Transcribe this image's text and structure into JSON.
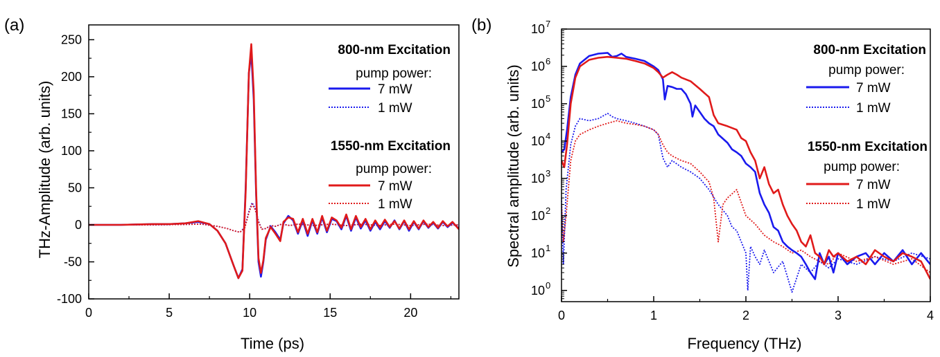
{
  "chart_data": [
    {
      "panel_label": "(a)",
      "type": "line",
      "xlabel": "Time (ps)",
      "ylabel": "THz-Amplitude (arb. units)",
      "xlim": [
        0,
        23
      ],
      "ylim": [
        -100,
        270
      ],
      "xticks": [
        "0",
        "5",
        "10",
        "15",
        "20"
      ],
      "yticks": [
        "-100",
        "-50",
        "0",
        "50",
        "100",
        "150",
        "200",
        "250"
      ],
      "legend": {
        "placement": "top-right",
        "group1_title": "800-nm Excitation",
        "group1_sub": "pump power:",
        "group2_title": "1550-nm Excitation",
        "group2_sub": "pump power:"
      },
      "series": [
        {
          "name": "7 mW",
          "group": "800-nm Excitation",
          "color": "#1a1aee",
          "dash": "solid",
          "x": [
            0,
            1,
            2,
            3,
            4,
            5,
            6,
            6.8,
            7.5,
            8,
            8.5,
            9,
            9.3,
            9.55,
            9.75,
            9.95,
            10.1,
            10.25,
            10.4,
            10.55,
            10.7,
            10.85,
            11.0,
            11.3,
            11.6,
            11.9,
            12.1,
            12.4,
            12.7,
            13.0,
            13.3,
            13.6,
            13.9,
            14.2,
            14.5,
            14.8,
            15.1,
            15.4,
            15.7,
            16.0,
            16.3,
            16.6,
            16.9,
            17.2,
            17.5,
            17.8,
            18.1,
            18.4,
            18.7,
            19.0,
            19.3,
            19.6,
            19.9,
            20.2,
            20.5,
            20.8,
            21.1,
            21.4,
            21.7,
            22.0,
            22.3,
            22.6,
            23.0
          ],
          "y": [
            0,
            0,
            0,
            0.5,
            1,
            1,
            2,
            4,
            1,
            -8,
            -25,
            -55,
            -72,
            -60,
            50,
            205,
            232,
            170,
            40,
            -50,
            -70,
            -50,
            -20,
            -2,
            -10,
            -20,
            2,
            12,
            6,
            -12,
            6,
            -15,
            6,
            -12,
            10,
            -10,
            8,
            5,
            -6,
            12,
            -8,
            10,
            -5,
            6,
            -8,
            4,
            -6,
            5,
            -4,
            6,
            -6,
            5,
            -8,
            4,
            -6,
            5,
            -4,
            3,
            -5,
            4,
            -3,
            3,
            -5
          ]
        },
        {
          "name": "1 mW",
          "group": "800-nm Excitation",
          "color": "#1a1aee",
          "dash": "dotted",
          "x": [
            0,
            2,
            4,
            6,
            7,
            8,
            8.6,
            9,
            9.4,
            9.7,
            9.95,
            10.15,
            10.35,
            10.55,
            10.75,
            11,
            11.3,
            11.6,
            12,
            12.5,
            13,
            14,
            15,
            16,
            17,
            18,
            19,
            20,
            21,
            22,
            23
          ],
          "y": [
            0,
            0,
            0,
            0.5,
            1,
            -2,
            -5,
            -8,
            -10,
            -3,
            18,
            30,
            22,
            5,
            -6,
            -5,
            -1,
            -2,
            1,
            -1,
            1,
            -1,
            1,
            -1,
            1,
            -1,
            1,
            -1,
            1,
            -1,
            0
          ]
        },
        {
          "name": "7 mW",
          "group": "1550-nm Excitation",
          "color": "#e01a1a",
          "dash": "solid",
          "x": [
            0,
            1,
            2,
            3,
            4,
            5,
            6,
            6.8,
            7.5,
            8,
            8.5,
            9,
            9.3,
            9.55,
            9.75,
            9.95,
            10.1,
            10.25,
            10.4,
            10.55,
            10.7,
            10.85,
            11.0,
            11.3,
            11.6,
            11.9,
            12.1,
            12.4,
            12.7,
            13.0,
            13.3,
            13.6,
            13.9,
            14.2,
            14.5,
            14.8,
            15.1,
            15.4,
            15.7,
            16.0,
            16.3,
            16.6,
            16.9,
            17.2,
            17.5,
            17.8,
            18.1,
            18.4,
            18.7,
            19.0,
            19.3,
            19.6,
            19.9,
            20.2,
            20.5,
            20.8,
            21.1,
            21.4,
            21.7,
            22.0,
            22.3,
            22.6,
            23.0
          ],
          "y": [
            0,
            0,
            0,
            0.5,
            1,
            1,
            2,
            5,
            1,
            -8,
            -25,
            -55,
            -72,
            -62,
            45,
            205,
            244,
            180,
            45,
            -45,
            -65,
            -48,
            -18,
            -3,
            -12,
            -22,
            4,
            10,
            8,
            -10,
            8,
            -12,
            8,
            -10,
            12,
            -8,
            10,
            6,
            -4,
            14,
            -6,
            12,
            -3,
            8,
            -6,
            6,
            -4,
            7,
            -3,
            5,
            -5,
            6,
            -6,
            5,
            -5,
            6,
            -3,
            4,
            -4,
            5,
            -2,
            4,
            -6
          ]
        },
        {
          "name": "1 mW",
          "group": "1550-nm Excitation",
          "color": "#e01a1a",
          "dash": "dotted",
          "x": [
            0,
            2,
            4,
            6,
            7,
            8,
            8.6,
            9,
            9.4,
            9.7,
            9.95,
            10.15,
            10.35,
            10.55,
            10.75,
            11,
            11.3,
            11.6,
            12,
            12.5,
            13,
            14,
            15,
            16,
            17,
            18,
            19,
            20,
            21,
            22,
            23
          ],
          "y": [
            0,
            0,
            0,
            0.5,
            1,
            -2,
            -5,
            -8,
            -10,
            -4,
            16,
            28,
            20,
            4,
            -6,
            -5,
            -1,
            -2,
            1,
            -1,
            1,
            -1,
            1,
            -1,
            1,
            -1,
            1,
            -1,
            1,
            -1,
            0
          ]
        }
      ]
    },
    {
      "panel_label": "(b)",
      "type": "line",
      "xlabel": "Frequency (THz)",
      "ylabel": "Spectral amplitude (arb. units)",
      "yscale": "log",
      "xlim": [
        0,
        4
      ],
      "ylim": [
        0.5,
        10000000
      ],
      "xticks": [
        "0",
        "1",
        "2",
        "3",
        "4"
      ],
      "yticks": [
        {
          "base": "10",
          "exp": "0",
          "value": 1
        },
        {
          "base": "10",
          "exp": "1",
          "value": 10
        },
        {
          "base": "10",
          "exp": "2",
          "value": 100
        },
        {
          "base": "10",
          "exp": "3",
          "value": 1000
        },
        {
          "base": "10",
          "exp": "4",
          "value": 10000
        },
        {
          "base": "10",
          "exp": "5",
          "value": 100000
        },
        {
          "base": "10",
          "exp": "6",
          "value": 1000000
        },
        {
          "base": "10",
          "exp": "7",
          "value": 10000000
        }
      ],
      "legend": {
        "placement": "top-right",
        "group1_title": "800-nm Excitation",
        "group1_sub": "pump power:",
        "group2_title": "1550-nm Excitation",
        "group2_sub": "pump power:"
      },
      "series": [
        {
          "name": "7 mW",
          "group": "800-nm Excitation",
          "color": "#1a1aee",
          "dash": "solid",
          "x": [
            0,
            0.03,
            0.06,
            0.1,
            0.15,
            0.2,
            0.3,
            0.4,
            0.5,
            0.55,
            0.6,
            0.65,
            0.7,
            0.8,
            0.9,
            1.0,
            1.05,
            1.1,
            1.12,
            1.15,
            1.2,
            1.25,
            1.3,
            1.35,
            1.4,
            1.42,
            1.45,
            1.5,
            1.55,
            1.6,
            1.65,
            1.7,
            1.8,
            1.85,
            1.9,
            1.95,
            2.0,
            2.05,
            2.1,
            2.15,
            2.2,
            2.25,
            2.3,
            2.35,
            2.4,
            2.45,
            2.5,
            2.55,
            2.6,
            2.65,
            2.7,
            2.75,
            2.8,
            2.85,
            2.9,
            2.95,
            3.0,
            3.1,
            3.2,
            3.3,
            3.4,
            3.5,
            3.6,
            3.7,
            3.8,
            3.9,
            4.0
          ],
          "y": [
            5000,
            6000,
            20000,
            150000,
            600000,
            1200000,
            1900000,
            2200000,
            2300000,
            1800000,
            1900000,
            2200000,
            1800000,
            1600000,
            1400000,
            1000000,
            800000,
            450000,
            130000,
            300000,
            280000,
            250000,
            250000,
            180000,
            100000,
            45000,
            90000,
            60000,
            40000,
            30000,
            25000,
            15000,
            9000,
            6000,
            5000,
            4000,
            2500,
            2000,
            1500,
            400,
            200,
            120,
            50,
            40,
            20,
            15,
            12,
            10,
            8,
            5,
            3,
            2,
            10,
            5,
            8,
            3,
            10,
            5,
            8,
            10,
            5,
            10,
            6,
            12,
            5,
            10,
            5
          ]
        },
        {
          "name": "1 mW",
          "group": "800-nm Excitation",
          "color": "#1a1aee",
          "dash": "dotted",
          "x": [
            0,
            0.02,
            0.05,
            0.1,
            0.15,
            0.2,
            0.3,
            0.4,
            0.5,
            0.55,
            0.6,
            0.7,
            0.8,
            0.9,
            1.0,
            1.05,
            1.1,
            1.15,
            1.2,
            1.3,
            1.4,
            1.5,
            1.6,
            1.7,
            1.8,
            1.85,
            1.9,
            1.95,
            2.0,
            2.02,
            2.05,
            2.1,
            2.15,
            2.2,
            2.3,
            2.4,
            2.5,
            2.6,
            2.7,
            2.8,
            2.9,
            3.0,
            3.2,
            3.4,
            3.6,
            3.8,
            4.0
          ],
          "y": [
            300,
            5,
            500,
            8000,
            25000,
            40000,
            35000,
            40000,
            55000,
            45000,
            40000,
            35000,
            30000,
            25000,
            20000,
            15000,
            3500,
            2000,
            3000,
            2000,
            1500,
            1000,
            500,
            200,
            100,
            50,
            40,
            20,
            10,
            1,
            15,
            8,
            5,
            12,
            3,
            6,
            0.9,
            5,
            3,
            6,
            4,
            7,
            5,
            8,
            6,
            10,
            7
          ]
        },
        {
          "name": "7 mW",
          "group": "1550-nm Excitation",
          "color": "#e01a1a",
          "dash": "solid",
          "x": [
            0,
            0.03,
            0.06,
            0.1,
            0.15,
            0.2,
            0.3,
            0.4,
            0.5,
            0.6,
            0.7,
            0.8,
            0.9,
            1.0,
            1.05,
            1.1,
            1.15,
            1.2,
            1.25,
            1.3,
            1.4,
            1.5,
            1.6,
            1.65,
            1.7,
            1.8,
            1.9,
            1.95,
            2.0,
            2.05,
            2.1,
            2.15,
            2.2,
            2.25,
            2.3,
            2.35,
            2.4,
            2.45,
            2.5,
            2.55,
            2.6,
            2.65,
            2.7,
            2.75,
            2.8,
            2.85,
            2.9,
            2.95,
            3.0,
            3.1,
            3.2,
            3.3,
            3.4,
            3.5,
            3.6,
            3.7,
            3.8,
            3.9,
            4.0
          ],
          "y": [
            3000,
            2000,
            8000,
            100000,
            500000,
            1000000,
            1500000,
            1700000,
            1800000,
            1700000,
            1600000,
            1400000,
            1200000,
            900000,
            700000,
            500000,
            600000,
            700000,
            600000,
            500000,
            400000,
            250000,
            150000,
            50000,
            30000,
            25000,
            20000,
            12000,
            10000,
            5000,
            3000,
            1000,
            2000,
            700,
            400,
            500,
            200,
            100,
            60,
            40,
            20,
            15,
            30,
            10,
            8,
            5,
            12,
            8,
            10,
            6,
            8,
            5,
            12,
            8,
            6,
            10,
            8,
            6,
            2
          ]
        },
        {
          "name": "1 mW",
          "group": "1550-nm Excitation",
          "color": "#e01a1a",
          "dash": "dotted",
          "x": [
            0,
            0.02,
            0.05,
            0.1,
            0.15,
            0.2,
            0.3,
            0.4,
            0.5,
            0.6,
            0.7,
            0.8,
            0.9,
            1.0,
            1.05,
            1.1,
            1.15,
            1.2,
            1.3,
            1.4,
            1.5,
            1.6,
            1.65,
            1.7,
            1.75,
            1.8,
            1.9,
            2.0,
            2.1,
            2.2,
            2.3,
            2.4,
            2.5,
            2.6,
            2.7,
            2.8,
            2.9,
            3.0,
            3.2,
            3.4,
            3.6,
            3.8,
            4.0
          ],
          "y": [
            200,
            20,
            100,
            3000,
            10000,
            15000,
            20000,
            25000,
            30000,
            35000,
            30000,
            28000,
            25000,
            20000,
            15000,
            8000,
            5000,
            4000,
            3000,
            2500,
            1500,
            800,
            300,
            20,
            200,
            300,
            500,
            100,
            60,
            30,
            20,
            15,
            10,
            12,
            8,
            6,
            5,
            10,
            6,
            8,
            5,
            7,
            3
          ]
        }
      ]
    }
  ]
}
